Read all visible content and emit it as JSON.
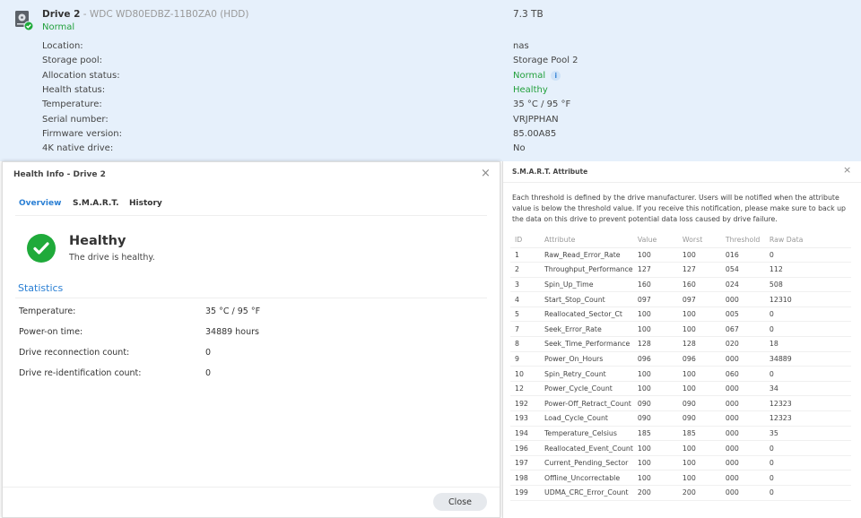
{
  "drive": {
    "name": "Drive 2",
    "separator": " - ",
    "model": "WDC WD80EDBZ-11B0ZA0 (HDD)",
    "status": "Normal",
    "capacity": "7.3 TB",
    "details": [
      {
        "label": "Location:",
        "value": "nas"
      },
      {
        "label": "Storage pool:",
        "value": "Storage Pool 2"
      },
      {
        "label": "Allocation status:",
        "value": "Normal"
      },
      {
        "label": "Health status:",
        "value": "Healthy"
      },
      {
        "label": "Temperature:",
        "value": "35 °C / 95 °F"
      },
      {
        "label": "Serial number:",
        "value": "VRJPPHAN"
      },
      {
        "label": "Firmware version:",
        "value": "85.00A85"
      },
      {
        "label": "4K native drive:",
        "value": "No"
      }
    ],
    "info_icon": "i"
  },
  "health_dialog": {
    "title": "Health Info - Drive 2",
    "close_x": "×",
    "tabs": [
      "Overview",
      "S.M.A.R.T.",
      "History"
    ],
    "active_tab": "Overview",
    "status_title": "Healthy",
    "status_sub": "The drive is healthy.",
    "stats_heading": "Statistics",
    "stats": [
      {
        "label": "Temperature:",
        "value": "35 °C / 95 °F"
      },
      {
        "label": "Power-on time:",
        "value": "34889 hours"
      },
      {
        "label": "Drive reconnection count:",
        "value": "0"
      },
      {
        "label": "Drive re-identification count:",
        "value": "0"
      }
    ],
    "close_label": "Close"
  },
  "smart_dialog": {
    "title": "S.M.A.R.T. Attribute",
    "close_x": "×",
    "description": "Each threshold is defined by the drive manufacturer. Users will be notified when the attribute value is below the threshold value. If you receive this notification, please make sure to back up the data on this drive to prevent potential data loss caused by drive failure.",
    "columns": [
      "ID",
      "Attribute",
      "Value",
      "Worst",
      "Threshold",
      "Raw Data"
    ],
    "rows": [
      [
        "1",
        "Raw_Read_Error_Rate",
        "100",
        "100",
        "016",
        "0"
      ],
      [
        "2",
        "Throughput_Performance",
        "127",
        "127",
        "054",
        "112"
      ],
      [
        "3",
        "Spin_Up_Time",
        "160",
        "160",
        "024",
        "508"
      ],
      [
        "4",
        "Start_Stop_Count",
        "097",
        "097",
        "000",
        "12310"
      ],
      [
        "5",
        "Reallocated_Sector_Ct",
        "100",
        "100",
        "005",
        "0"
      ],
      [
        "7",
        "Seek_Error_Rate",
        "100",
        "100",
        "067",
        "0"
      ],
      [
        "8",
        "Seek_Time_Performance",
        "128",
        "128",
        "020",
        "18"
      ],
      [
        "9",
        "Power_On_Hours",
        "096",
        "096",
        "000",
        "34889"
      ],
      [
        "10",
        "Spin_Retry_Count",
        "100",
        "100",
        "060",
        "0"
      ],
      [
        "12",
        "Power_Cycle_Count",
        "100",
        "100",
        "000",
        "34"
      ],
      [
        "192",
        "Power-Off_Retract_Count",
        "090",
        "090",
        "000",
        "12323"
      ],
      [
        "193",
        "Load_Cycle_Count",
        "090",
        "090",
        "000",
        "12323"
      ],
      [
        "194",
        "Temperature_Celsius",
        "185",
        "185",
        "000",
        "35"
      ],
      [
        "196",
        "Reallocated_Event_Count",
        "100",
        "100",
        "000",
        "0"
      ],
      [
        "197",
        "Current_Pending_Sector",
        "100",
        "100",
        "000",
        "0"
      ],
      [
        "198",
        "Offline_Uncorrectable",
        "100",
        "100",
        "000",
        "0"
      ],
      [
        "199",
        "UDMA_CRC_Error_Count",
        "200",
        "200",
        "000",
        "0"
      ]
    ]
  }
}
